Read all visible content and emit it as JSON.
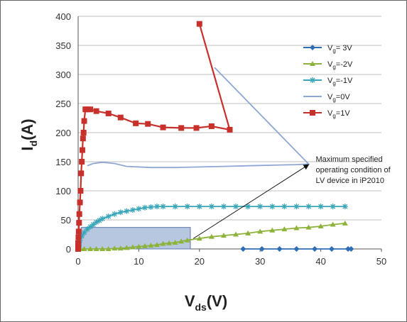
{
  "chart_data": {
    "type": "scatter",
    "title": "",
    "xlabel": {
      "main": "V",
      "sub": "ds",
      "tail": "(V)"
    },
    "ylabel": {
      "main": "I",
      "sub": "d",
      "tail": "(A)"
    },
    "xlim": [
      0,
      50
    ],
    "ylim": [
      0,
      400
    ],
    "xticks": [
      0,
      10,
      20,
      30,
      40,
      50
    ],
    "yticks": [
      0,
      50,
      100,
      150,
      200,
      250,
      300,
      350,
      400
    ],
    "grid": "horizontal",
    "legend_position": "right",
    "series": [
      {
        "name": {
          "pre": "V",
          "sub": "g",
          "post": "= 3V"
        },
        "color": "#2e6db4",
        "marker": "diamond",
        "points": [
          [
            27.2,
            0
          ],
          [
            30.3,
            0
          ],
          [
            33.2,
            0
          ],
          [
            36.0,
            0
          ],
          [
            39.0,
            0
          ],
          [
            41.8,
            0
          ],
          [
            44.5,
            0
          ],
          [
            45.0,
            0
          ]
        ]
      },
      {
        "name": {
          "pre": "V",
          "sub": "g",
          "post": "=-2V"
        },
        "color": "#8db33a",
        "marker": "triangle",
        "points": [
          [
            0.4,
            0
          ],
          [
            1.0,
            0
          ],
          [
            2.0,
            0
          ],
          [
            3.0,
            0
          ],
          [
            4.0,
            0
          ],
          [
            5.0,
            0
          ],
          [
            6.0,
            1
          ],
          [
            7.0,
            1
          ],
          [
            8.0,
            2
          ],
          [
            9.0,
            3
          ],
          [
            10.0,
            4
          ],
          [
            11.0,
            5
          ],
          [
            12.0,
            6
          ],
          [
            13.0,
            7
          ],
          [
            14.0,
            9
          ],
          [
            15.0,
            10
          ],
          [
            16.0,
            11
          ],
          [
            17.0,
            13
          ],
          [
            18.0,
            15
          ],
          [
            20.0,
            18
          ],
          [
            22.0,
            21
          ],
          [
            24.0,
            23
          ],
          [
            26.0,
            25
          ],
          [
            28.0,
            27
          ],
          [
            30.0,
            30
          ],
          [
            32.0,
            32
          ],
          [
            34.0,
            34
          ],
          [
            36.0,
            36
          ],
          [
            38.0,
            37
          ],
          [
            40.0,
            39
          ],
          [
            42.0,
            42
          ],
          [
            44.0,
            44
          ]
        ]
      },
      {
        "name": {
          "pre": "V",
          "sub": "g",
          "post": "=-1V"
        },
        "color": "#3aa6b9",
        "marker": "star",
        "points": [
          [
            0.1,
            5
          ],
          [
            0.3,
            15
          ],
          [
            0.6,
            22
          ],
          [
            1.0,
            28
          ],
          [
            1.5,
            34
          ],
          [
            2.0,
            38
          ],
          [
            2.5,
            42
          ],
          [
            3.0,
            46
          ],
          [
            3.5,
            49
          ],
          [
            4.0,
            52
          ],
          [
            5.0,
            56
          ],
          [
            6.0,
            60
          ],
          [
            7.0,
            63
          ],
          [
            8.0,
            65
          ],
          [
            9.0,
            67
          ],
          [
            10.0,
            69
          ],
          [
            11.0,
            71
          ],
          [
            12.0,
            72
          ],
          [
            13.0,
            73
          ],
          [
            14.0,
            73
          ],
          [
            16.0,
            73
          ],
          [
            18.0,
            73
          ],
          [
            20.0,
            73
          ],
          [
            22.0,
            73
          ],
          [
            24.0,
            73
          ],
          [
            26.0,
            73
          ],
          [
            28.0,
            73
          ],
          [
            30.0,
            73
          ],
          [
            32.0,
            73
          ],
          [
            34.0,
            73
          ],
          [
            36.0,
            73
          ],
          [
            38.0,
            73
          ],
          [
            40.0,
            73
          ],
          [
            42.0,
            73
          ],
          [
            44.0,
            73
          ]
        ]
      },
      {
        "name": {
          "pre": "V",
          "sub": "g",
          "post": "=0V"
        },
        "color": "#8ea7d4",
        "marker": "none",
        "points": [
          [
            1.5,
            143
          ],
          [
            2.5,
            147
          ],
          [
            4.0,
            149
          ],
          [
            6.0,
            147
          ],
          [
            8.0,
            142
          ],
          [
            12.0,
            140
          ],
          [
            16.0,
            140
          ],
          [
            20.0,
            141
          ],
          [
            24.0,
            142
          ],
          [
            28.0,
            143
          ],
          [
            32.0,
            144
          ],
          [
            36.0,
            145
          ],
          [
            38.0,
            146
          ],
          [
            22.5,
            312
          ]
        ]
      },
      {
        "name": {
          "pre": "V",
          "sub": "g",
          "post": "=1V"
        },
        "color": "#c8312b",
        "marker": "square",
        "points": [
          [
            0.0,
            0
          ],
          [
            0.0,
            5
          ],
          [
            0.0,
            10
          ],
          [
            0.05,
            20
          ],
          [
            0.1,
            30
          ],
          [
            0.15,
            45
          ],
          [
            0.2,
            60
          ],
          [
            0.3,
            80
          ],
          [
            0.4,
            100
          ],
          [
            0.5,
            130
          ],
          [
            0.6,
            150
          ],
          [
            0.7,
            170
          ],
          [
            0.8,
            190
          ],
          [
            0.9,
            200
          ],
          [
            1.0,
            220
          ],
          [
            1.2,
            240
          ],
          [
            1.5,
            240
          ],
          [
            2.0,
            240
          ],
          [
            3.0,
            237
          ],
          [
            5.0,
            233
          ],
          [
            7.0,
            226
          ],
          [
            9.5,
            216
          ],
          [
            11.5,
            215
          ],
          [
            14.0,
            209
          ],
          [
            17.0,
            208
          ],
          [
            19.5,
            208
          ],
          [
            22.0,
            211
          ],
          [
            25.0,
            205
          ],
          [
            20.0,
            387
          ]
        ]
      }
    ],
    "highlight_box": {
      "x0": 0.5,
      "x1": 18.5,
      "y0": 0,
      "y1": 37
    },
    "annotation": {
      "lines": [
        "Maximum specified",
        "operating condition of",
        "LV device in iP2010"
      ],
      "arrow_from": [
        19.0,
        18
      ],
      "arrow_to": [
        38.0,
        145
      ]
    }
  }
}
